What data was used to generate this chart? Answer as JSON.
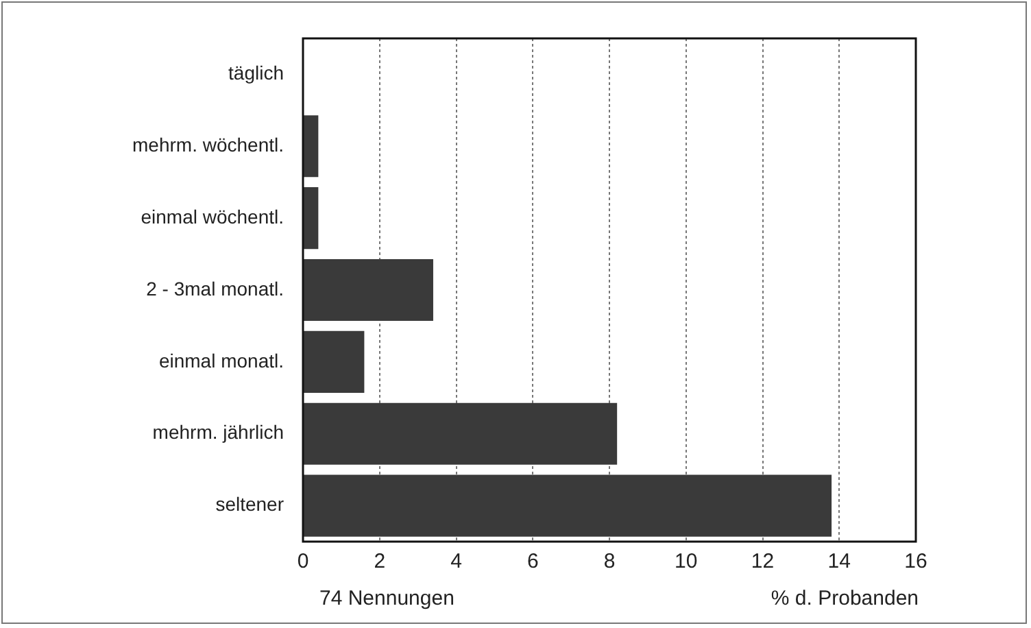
{
  "chart_data": {
    "type": "bar",
    "orientation": "horizontal",
    "categories": [
      "täglich",
      "mehrm. wöchentl.",
      "einmal wöchentl.",
      "2 - 3mal monatl.",
      "einmal monatl.",
      "mehrm. jährlich",
      "seltener"
    ],
    "values": [
      0,
      0.4,
      0.4,
      3.4,
      1.6,
      8.2,
      13.8
    ],
    "color": "#3a3a3a",
    "xlim": [
      0,
      16
    ],
    "xticks": [
      0,
      2,
      4,
      6,
      8,
      10,
      12,
      14,
      16
    ],
    "xlabel": "% d. Probanden",
    "annotations": [
      "74 Nennungen"
    ],
    "grid": "x",
    "legend": false
  }
}
